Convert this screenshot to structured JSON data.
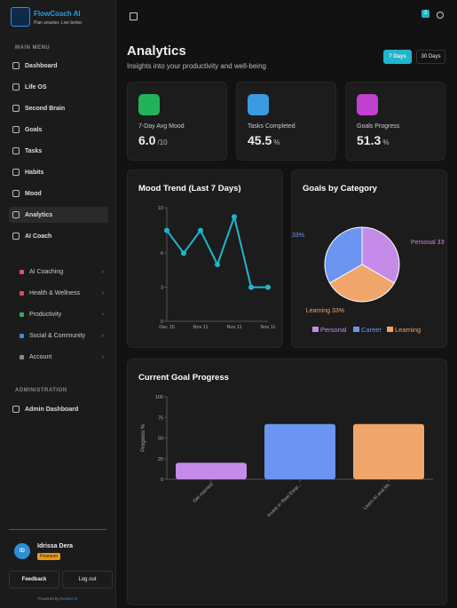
{
  "sidebar": {
    "brand": "FlowCoach AI",
    "tagline": "Plan smarter. Live better.",
    "main_menu_label": "MAIN MENU",
    "main_menu": [
      "Dashboard",
      "Life OS",
      "Second Brain",
      "Goals",
      "Tasks",
      "Habits",
      "Mood",
      "Analytics",
      "AI Coach"
    ],
    "groups": [
      "AI Coaching",
      "Health & Wellness",
      "Productivity",
      "Social & Community",
      "Account"
    ],
    "admin_label": "ADMINISTRATION",
    "admin_menu": [
      "Admin Dashboard"
    ],
    "user": {
      "initials": "ID",
      "name": "Idrissa Dera",
      "badge": "Premium"
    },
    "buttons": [
      "Feedback",
      "Log out"
    ],
    "footer": {
      "prefix": "Powered by",
      "brand": "Rocket AI"
    }
  },
  "topbar": {
    "notifications": "3"
  },
  "header": {
    "title": "Analytics",
    "subtitle": "Insights into your productivity and well-being",
    "ranges": [
      "7 Days",
      "30 Days"
    ]
  },
  "stats": [
    {
      "label": "7-Day Avg Mood",
      "value": "6.0",
      "unit": "/10"
    },
    {
      "label": "Tasks Completed",
      "value": "45.5",
      "unit": "%"
    },
    {
      "label": "Goals Progress",
      "value": "51.3",
      "unit": "%"
    }
  ],
  "chart_data": [
    {
      "type": "line",
      "title": "Mood Trend (Last 7 Days)",
      "categories": [
        "Dec 15",
        null,
        "Nov 11",
        null,
        "Nov 11",
        null,
        "Nov 11"
      ],
      "values": [
        8,
        6,
        8,
        5,
        9.2,
        3,
        3
      ],
      "color": "#1fb6cc",
      "ylim": [
        0,
        10
      ],
      "yticks": [
        0,
        3,
        6,
        10
      ]
    },
    {
      "type": "pie",
      "title": "Goals by Category",
      "categories": [
        "Personal",
        "Career",
        "Learning"
      ],
      "values": [
        33,
        33,
        33
      ],
      "value_labels": [
        "33%",
        "33%",
        "33%"
      ],
      "colors": [
        "#c58be8",
        "#6b95f0",
        "#f0a56b"
      ]
    },
    {
      "type": "bar",
      "title": "Current Goal Progress",
      "y_label": "Progress %",
      "categories": [
        "Get married",
        "Invest in Real Estat...",
        "Learn AI and ML"
      ],
      "values": [
        20,
        67,
        67
      ],
      "colors": [
        "#c58be8",
        "#6b95f0",
        "#f0a56b"
      ],
      "ylim": [
        0,
        100
      ],
      "yticks": [
        0,
        25,
        50,
        75,
        100
      ]
    }
  ]
}
